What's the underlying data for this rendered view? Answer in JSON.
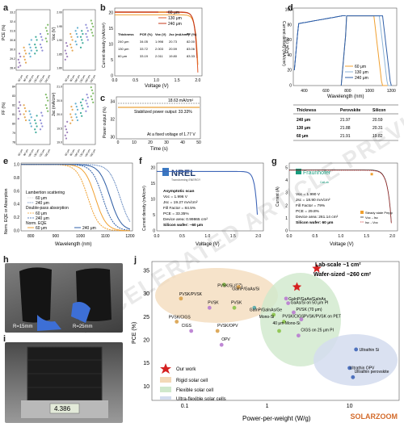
{
  "panels": {
    "a": {
      "label": "a",
      "subplots": [
        {
          "ylabel": "PCE (%)",
          "yticks": [
            "33.2",
            "32.4",
            "31.6",
            "30.8",
            "30.0",
            "29.2",
            "28.4"
          ],
          "ylim": [
            28.4,
            33.2
          ]
        },
        {
          "ylabel": "Voc (V)",
          "yticks": [
            "2.00",
            "1.95",
            "1.90",
            "1.85",
            "1.80"
          ],
          "ylim": [
            1.8,
            2.0
          ]
        },
        {
          "ylabel": "FF (%)",
          "yticks": [
            "84",
            "83",
            "82",
            "81",
            "80",
            "79",
            "78"
          ],
          "ylim": [
            78,
            84
          ]
        },
        {
          "ylabel": "Jsc (mA/cm²)",
          "yticks": [
            "21.0",
            "20.5",
            "20.0",
            "19.5",
            "19.0"
          ],
          "ylim": [
            19.0,
            21.0
          ]
        }
      ],
      "categories": [
        "60 μm",
        "80 μm",
        "100 μm",
        "130 μm",
        "150 μm",
        "240 μm"
      ]
    },
    "b": {
      "label": "b",
      "xlabel": "Voltage (V)",
      "ylabel": "Current density (mA/cm²)",
      "xticks": [
        "0.0",
        "0.5",
        "1.0",
        "1.5",
        "2.0"
      ],
      "yticks": [
        "0",
        "5",
        "10",
        "15",
        "20"
      ],
      "legend": [
        "60 μm",
        "130 μm",
        "240 μm"
      ],
      "table": {
        "headers": [
          "Thickness",
          "PCE (%)",
          "Voc (V)",
          "Jsc (mA/cm²)",
          "FF (%)"
        ],
        "rows": [
          [
            "240 μm",
            "34.05",
            "1.998",
            "20.73",
            "82.00"
          ],
          [
            "130 μm",
            "33.72",
            "2.003",
            "20.59",
            "83.06"
          ],
          [
            "60 μm",
            "33.19",
            "2.011",
            "19.80",
            "83.33"
          ]
        ]
      }
    },
    "c": {
      "label": "c",
      "xlabel": "Time (s)",
      "ylabel": "Power output (%)",
      "xticks": [
        "0",
        "10",
        "20",
        "30",
        "40",
        "50"
      ],
      "yticks": [
        "30",
        "32",
        "34"
      ],
      "annot1": "18.63 mA/cm²",
      "annot2": "Stabilized power output: 33.33%",
      "annot3": "At a fixed voltage of 1.77 V",
      "right_label": "Current density (mA/cm²)"
    },
    "d": {
      "label": "d",
      "xlabel": "Wavelength (nm)",
      "ylabel": "EQE (%)",
      "xticks": [
        "400",
        "600",
        "800",
        "1000",
        "1200"
      ],
      "yticks": [
        "0",
        "20",
        "40",
        "60",
        "80",
        "100"
      ],
      "legend": [
        "60 μm",
        "130 μm",
        "240 μm"
      ],
      "table": {
        "headers": [
          "Thickness",
          "Perovskite",
          "Silicon"
        ],
        "rows": [
          [
            "240 μm",
            "21.97",
            "20.59"
          ],
          [
            "130 μm",
            "21.88",
            "20.31"
          ],
          [
            "60 μm",
            "21.91",
            "19.82"
          ]
        ]
      }
    },
    "e": {
      "label": "e",
      "xlabel": "Wavelength (nm)",
      "ylabel": "Norm. EQE or Absorption",
      "xticks": [
        "800",
        "900",
        "1000",
        "1100",
        "1200"
      ],
      "yticks": [
        "0.0",
        "0.2",
        "0.4",
        "0.6",
        "0.8",
        "1.0"
      ],
      "legend_groups": [
        "Lambertion scattering",
        "Double-pass absorption",
        "Norm. EQE"
      ],
      "legend_items": [
        "60 μm",
        "240 μm",
        "60 μm",
        "240 μm",
        "60 μm",
        "240 μm"
      ]
    },
    "f": {
      "label": "f",
      "logo": "NREL",
      "logo_sub": "Transforming ENERGY",
      "xlabel": "Voltage (V)",
      "ylabel": "Current density (mA/cm²)",
      "xticks": [
        "0.0",
        "0.5",
        "1.0",
        "1.5",
        "2.0"
      ],
      "yticks": [
        "0",
        "5",
        "10",
        "15",
        "20"
      ],
      "lines": [
        "Asymptotic scan",
        "Voc = 1.996 V",
        "Jsc = 19.27 mA/cm²",
        "Fill Factor = 84.5%",
        "PCE = 33.35%",
        "Device area:  0.99865 cm²",
        "Silicon wafer: ~60 μm"
      ]
    },
    "g": {
      "label": "g",
      "logo": "Fraunhofer",
      "logo_sub": "CalLab",
      "xlabel": "Voltage (V)",
      "ylabel": "Current (A)",
      "xticks": [
        "0.0",
        "0.5",
        "1.0",
        "1.5",
        "2.0"
      ],
      "yticks": [
        "0",
        "1",
        "2",
        "3",
        "4",
        "5"
      ],
      "lines": [
        "Voc = 1.990 V",
        "Jsc = 18.90 mA/cm²",
        "Fill Factor = 79%",
        "PCE = 29.8%",
        "Device area: 261.14 cm²",
        "Silicon wafer: 60 μm"
      ],
      "legend": [
        "Steady state Pmpp",
        "Voc→Isc",
        "Isc→Voc"
      ]
    },
    "h": {
      "label": "h",
      "cap1": "R=15mm",
      "cap2": "R=25mm"
    },
    "i": {
      "label": "i",
      "scale": "4.386"
    },
    "j": {
      "label": "j",
      "xlabel": "Power-per-weight (W/g)",
      "ylabel": "PCE (%)",
      "xticks": [
        "0.1",
        "1",
        "10"
      ],
      "yticks": [
        "10",
        "15",
        "20",
        "25",
        "30",
        "35"
      ],
      "star1": "Lab-scale ~1 cm²",
      "star2": "Wafer-sized ~260 cm²",
      "legend": [
        "Our work",
        "Rigid solar cell",
        "Flexible solar cell",
        "Ultra-flexible solar cells"
      ],
      "point_labels": [
        "PVSK/PVSK",
        "PVSK/CIGS",
        "PVSK",
        "CIGS",
        "PVSK/OPV",
        "OPV",
        "PVSK/Si (CZ)",
        "GaInP/GaAs/Si",
        "PVSK",
        "GaInP/GaInAs/Ge",
        "Mono-Si",
        "PVSK/CIGS",
        "GaInP/GaAs/GaInAs",
        "GaAs/Si on 50 μm PI",
        "PVSK (70 μm)",
        "PVSK/PVSK on PET",
        "CIGS on 25 μm PI",
        "40 μm Mono-Si",
        "Ultrathin Si",
        "Ultrathin perovskite",
        "Ultrathin OPV"
      ]
    }
  },
  "watermark": "ACCELERATED ARTICLE PREVIEW",
  "site_mark": "SOLARZOOM"
}
